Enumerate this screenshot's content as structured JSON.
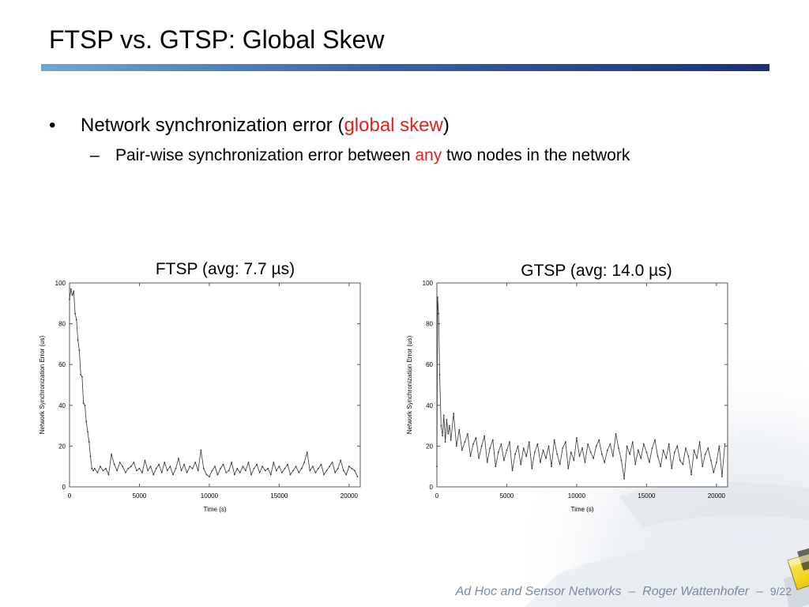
{
  "slide": {
    "title": "FTSP vs. GTSP: Global Skew",
    "bullet_1": {
      "before": "Network synchronization error (",
      "highlight": "global skew",
      "after": ")"
    },
    "bullet_2": {
      "before": "Pair-wise synchronization error between ",
      "highlight": "any",
      "after": " two nodes in the network"
    },
    "bullet_symbol": "•",
    "dash_symbol": "–",
    "highlight_color": "#e8201c"
  },
  "footer": {
    "course": "Ad Hoc and Sensor Networks",
    "sep1": "–",
    "author": "Roger Wattenhofer",
    "sep2": "–",
    "page": "9/22"
  },
  "chart_data": [
    {
      "type": "line",
      "title": "FTSP (avg: 7.7 µs)",
      "xlabel": "Time (s)",
      "ylabel": "Network Synchronization Error (us)",
      "xlim": [
        0,
        20800
      ],
      "ylim": [
        0,
        100
      ],
      "xticks": [
        0,
        5000,
        10000,
        15000,
        20000
      ],
      "yticks": [
        0,
        20,
        40,
        60,
        80,
        100
      ],
      "grid": false,
      "series": [
        {
          "color": "#333333",
          "x": [
            0,
            100,
            200,
            300,
            400,
            500,
            600,
            700,
            800,
            900,
            1000,
            1100,
            1200,
            1300,
            1400,
            1500,
            1600,
            1700,
            1800,
            2000,
            2200,
            2400,
            2600,
            2800,
            3000,
            3200,
            3400,
            3600,
            3800,
            4000,
            4200,
            4400,
            4600,
            4800,
            5000,
            5200,
            5400,
            5600,
            5800,
            6000,
            6200,
            6400,
            6600,
            6800,
            7000,
            7200,
            7400,
            7600,
            7800,
            8000,
            8200,
            8400,
            8600,
            8800,
            9000,
            9200,
            9400,
            9600,
            9800,
            10000,
            10200,
            10400,
            10600,
            10800,
            11000,
            11200,
            11400,
            11600,
            11800,
            12000,
            12200,
            12400,
            12600,
            12800,
            13000,
            13200,
            13400,
            13600,
            13800,
            14000,
            14200,
            14400,
            14600,
            14800,
            15000,
            15200,
            15400,
            15600,
            15800,
            16000,
            16200,
            16400,
            16600,
            16800,
            17000,
            17200,
            17400,
            17600,
            17800,
            18000,
            18200,
            18400,
            18600,
            18800,
            19000,
            19200,
            19400,
            19600,
            19800,
            20000,
            20200,
            20400,
            20600
          ],
          "y": [
            92,
            97,
            94,
            96,
            85,
            82,
            72,
            67,
            55,
            54,
            41,
            40,
            32,
            27,
            22,
            15,
            9,
            8,
            9,
            7,
            10,
            8,
            9,
            6,
            16,
            11,
            8,
            12,
            10,
            7,
            9,
            10,
            12,
            8,
            9,
            7,
            13,
            8,
            10,
            6,
            9,
            11,
            7,
            12,
            8,
            10,
            6,
            9,
            14,
            8,
            11,
            7,
            10,
            9,
            12,
            8,
            18,
            9,
            6,
            5,
            8,
            10,
            6,
            9,
            11,
            7,
            8,
            12,
            6,
            9,
            7,
            10,
            8,
            12,
            6,
            9,
            11,
            7,
            10,
            8,
            9,
            6,
            12,
            8,
            10,
            7,
            9,
            11,
            6,
            8,
            10,
            7,
            9,
            12,
            17,
            8,
            10,
            7,
            9,
            11,
            6,
            8,
            10,
            12,
            7,
            9,
            13,
            8,
            6,
            10,
            9,
            8,
            5
          ]
        }
      ]
    },
    {
      "type": "line",
      "title": "GTSP (avg: 14.0 µs)",
      "xlabel": "Time (s)",
      "ylabel": "Network Synchronization Error (us)",
      "xlim": [
        0,
        20800
      ],
      "ylim": [
        0,
        100
      ],
      "xticks": [
        0,
        5000,
        10000,
        15000,
        20000
      ],
      "yticks": [
        0,
        20,
        40,
        60,
        80,
        100
      ],
      "grid": false,
      "series": [
        {
          "color": "#333333",
          "x": [
            0,
            50,
            120,
            200,
            300,
            400,
            500,
            600,
            700,
            800,
            900,
            1000,
            1200,
            1400,
            1600,
            1800,
            2000,
            2200,
            2400,
            2600,
            2800,
            3000,
            3200,
            3400,
            3600,
            3800,
            4000,
            4200,
            4400,
            4600,
            4800,
            5000,
            5200,
            5400,
            5600,
            5800,
            6000,
            6200,
            6400,
            6600,
            6800,
            7000,
            7200,
            7400,
            7600,
            7800,
            8000,
            8200,
            8400,
            8600,
            8800,
            9000,
            9200,
            9400,
            9600,
            9800,
            10000,
            10200,
            10400,
            10600,
            10800,
            11000,
            11200,
            11400,
            11600,
            11800,
            12000,
            12200,
            12400,
            12600,
            12800,
            13000,
            13200,
            13400,
            13600,
            13800,
            14000,
            14200,
            14400,
            14600,
            14800,
            15000,
            15200,
            15400,
            15600,
            15800,
            16000,
            16200,
            16400,
            16600,
            16800,
            17000,
            17200,
            17400,
            17600,
            17800,
            18000,
            18200,
            18400,
            18600,
            18800,
            19000,
            19200,
            19400,
            19600,
            19800,
            20000,
            20200,
            20400,
            20600
          ],
          "y": [
            10,
            93,
            85,
            55,
            30,
            25,
            35,
            22,
            33,
            26,
            30,
            23,
            36,
            20,
            28,
            18,
            22,
            26,
            15,
            21,
            24,
            14,
            20,
            25,
            12,
            19,
            23,
            10,
            17,
            21,
            13,
            18,
            22,
            8,
            16,
            20,
            11,
            19,
            15,
            22,
            9,
            17,
            21,
            12,
            18,
            14,
            20,
            10,
            23,
            16,
            11,
            19,
            22,
            9,
            17,
            13,
            24,
            15,
            19,
            12,
            21,
            17,
            14,
            20,
            23,
            16,
            12,
            18,
            21,
            15,
            26,
            19,
            13,
            4,
            20,
            16,
            22,
            11,
            18,
            14,
            21,
            17,
            12,
            19,
            23,
            15,
            10,
            18,
            14,
            21,
            9,
            17,
            20,
            13,
            11,
            19,
            15,
            6,
            18,
            14,
            22,
            10,
            16,
            19,
            13,
            7,
            12,
            20,
            5,
            21
          ]
        }
      ]
    }
  ]
}
